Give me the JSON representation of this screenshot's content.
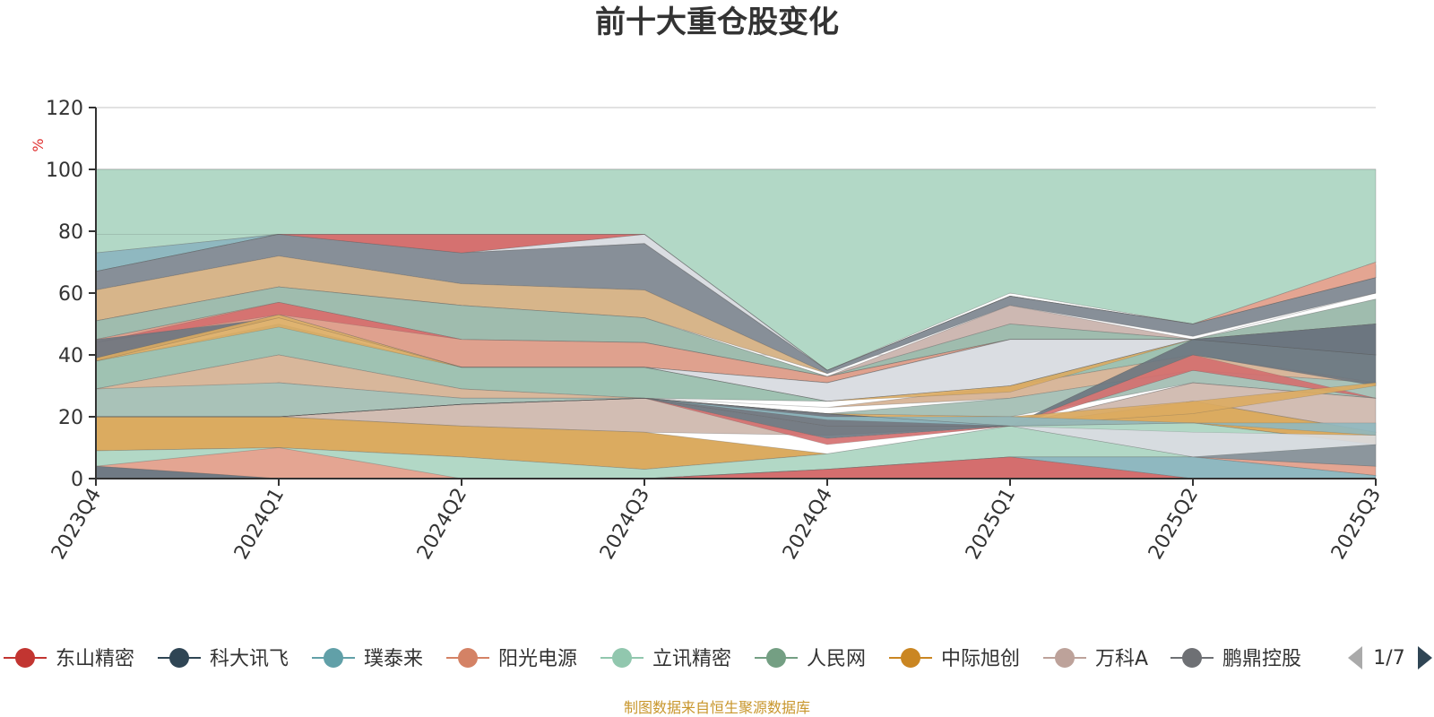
{
  "chart_data": {
    "type": "area",
    "title": "前十大重仓股变化",
    "ylabel": "%",
    "ylim": [
      0,
      120
    ],
    "yticks": [
      "0",
      "20",
      "40",
      "60",
      "80",
      "100",
      "120"
    ],
    "categories": [
      "2023Q4",
      "2024Q1",
      "2024Q2",
      "2024Q3",
      "2024Q4",
      "2025Q1",
      "2025Q2",
      "2025Q3"
    ],
    "bands": [
      {
        "name": "cash-others",
        "color": "#b2d8c6",
        "lower": [
          73,
          79,
          79,
          79,
          35,
          60,
          50,
          70
        ],
        "upper": [
          100,
          100,
          100,
          100,
          100,
          100,
          100,
          100
        ]
      },
      {
        "name": "band-a",
        "color": "#8fb8c0",
        "lower": [
          67,
          79,
          73,
          79,
          35,
          59,
          50,
          65
        ],
        "upper": [
          73,
          79,
          79,
          79,
          35,
          59,
          50,
          69
        ]
      },
      {
        "name": "band-b",
        "color": "#dc8a84",
        "lower": [
          67,
          79,
          73,
          79,
          35,
          59,
          50,
          65
        ],
        "upper": [
          67,
          79,
          79,
          79,
          35,
          59,
          50,
          65
        ]
      },
      {
        "name": "band-c",
        "color": "#dadde2",
        "lower": [
          67,
          79,
          73,
          76,
          35,
          59,
          50,
          65
        ],
        "upper": [
          67,
          79,
          73,
          79,
          35,
          59,
          50,
          65
        ]
      },
      {
        "name": "band-d",
        "color": "#e4a592",
        "lower": [
          65,
          79,
          73,
          76,
          35,
          59,
          50,
          65
        ],
        "upper": [
          65,
          79,
          73,
          76,
          35,
          59,
          50,
          70
        ]
      },
      {
        "name": "band-e",
        "color": "#878f98",
        "lower": [
          61,
          72,
          63,
          61,
          34,
          56,
          46,
          60
        ],
        "upper": [
          67,
          79,
          73,
          76,
          35,
          59,
          50,
          65
        ]
      },
      {
        "name": "band-f",
        "color": "#d7b58a",
        "lower": [
          51,
          62,
          56,
          52,
          34,
          50,
          45,
          60
        ],
        "upper": [
          61,
          72,
          63,
          61,
          34,
          50,
          45,
          60
        ]
      },
      {
        "name": "band-g",
        "color": "#cdb8b2",
        "lower": [
          45,
          62,
          56,
          52,
          33,
          50,
          45,
          58
        ],
        "upper": [
          51,
          62,
          56,
          52,
          33,
          56,
          45,
          58
        ]
      },
      {
        "name": "band-h",
        "color": "#9fbcae",
        "lower": [
          45,
          57,
          45,
          44,
          33,
          45,
          45,
          50
        ],
        "upper": [
          51,
          62,
          56,
          52,
          33,
          50,
          45,
          58
        ]
      },
      {
        "name": "band-i",
        "color": "#dfa18e",
        "lower": [
          39,
          53,
          36,
          36,
          31,
          45,
          45,
          50
        ],
        "upper": [
          45,
          57,
          45,
          44,
          33,
          45,
          45,
          50
        ]
      },
      {
        "name": "band-j",
        "color": "#d7c6bf",
        "lower": [
          38,
          52,
          36,
          36,
          31,
          36,
          45,
          40
        ],
        "upper": [
          39,
          53,
          36,
          36,
          31,
          45,
          45,
          50
        ]
      },
      {
        "name": "band-k",
        "color": "#dadde2",
        "lower": [
          38,
          52,
          36,
          36,
          25,
          30,
          45,
          40
        ],
        "upper": [
          38,
          52,
          36,
          36,
          31,
          45,
          45,
          40
        ]
      },
      {
        "name": "band-l",
        "color": "#9fc2b2",
        "lower": [
          29,
          40,
          29,
          26,
          25,
          30,
          40,
          31
        ],
        "upper": [
          38,
          50,
          36,
          36,
          25,
          30,
          45,
          40
        ]
      },
      {
        "name": "band-m",
        "color": "#d8b79b",
        "lower": [
          20,
          31,
          26,
          26,
          23,
          26,
          35,
          31
        ],
        "upper": [
          29,
          40,
          29,
          26,
          23,
          30,
          40,
          31
        ]
      },
      {
        "name": "band-n",
        "color": "#a9c2b8",
        "lower": [
          20,
          20,
          24,
          26,
          21,
          20,
          31,
          26
        ],
        "upper": [
          29,
          31,
          26,
          26,
          21,
          26,
          35,
          31
        ]
      },
      {
        "name": "band-o",
        "color": "#d2bdb3",
        "lower": [
          20,
          20,
          17,
          15,
          14,
          17,
          25,
          15
        ],
        "upper": [
          20,
          20,
          24,
          26,
          21,
          17,
          31,
          26
        ]
      },
      {
        "name": "band-p",
        "color": "#dbab60",
        "lower": [
          9,
          10,
          7,
          3,
          8,
          17,
          18,
          11
        ],
        "upper": [
          20,
          20,
          17,
          15,
          8,
          17,
          25,
          15
        ]
      },
      {
        "name": "band-q",
        "color": "#b2d8c6",
        "lower": [
          4,
          0,
          0,
          0,
          3,
          7,
          7,
          4
        ],
        "upper": [
          9,
          10,
          7,
          3,
          8,
          17,
          18,
          11
        ]
      },
      {
        "name": "band-r",
        "color": "#e4a592",
        "lower": [
          4,
          0,
          0,
          0,
          3,
          7,
          7,
          1
        ],
        "upper": [
          4,
          10,
          0,
          0,
          3,
          7,
          7,
          4
        ]
      },
      {
        "name": "band-s",
        "color": "#8fb8c0",
        "lower": [
          0,
          0,
          0,
          0,
          3,
          7,
          0,
          0
        ],
        "upper": [
          0,
          0,
          0,
          0,
          3,
          7,
          7,
          1
        ]
      },
      {
        "name": "band-t",
        "color": "#d46e6e",
        "lower": [
          0,
          0,
          0,
          0,
          0,
          0,
          0,
          0
        ],
        "upper": [
          0,
          0,
          0,
          0,
          3,
          7,
          0,
          0
        ]
      },
      {
        "name": "band-u",
        "color": "#707a84",
        "lower": [
          0,
          0,
          0,
          0,
          0,
          0,
          0,
          0
        ],
        "upper": [
          4,
          0,
          0,
          0,
          0,
          0,
          0,
          0
        ]
      }
    ],
    "overlays": [
      {
        "name": "overlay-red-upper",
        "color": "#d46e6e",
        "lower": [
          79,
          79,
          73,
          79,
          35,
          59,
          50,
          65
        ],
        "upper": [
          79,
          79,
          79,
          79,
          35,
          59,
          50,
          65
        ]
      },
      {
        "name": "overlay-red-mid",
        "color": "#d46e6e",
        "lower": [
          44,
          53,
          45,
          44,
          33,
          45,
          45,
          50
        ],
        "upper": [
          44,
          57,
          45,
          44,
          33,
          45,
          45,
          50
        ]
      },
      {
        "name": "overlay-dark-mid",
        "color": "#6b7680",
        "lower": [
          38,
          52,
          36,
          36,
          31,
          45,
          45,
          40
        ],
        "upper": [
          45,
          52,
          36,
          36,
          31,
          45,
          45,
          50
        ]
      },
      {
        "name": "overlay-gold-mid",
        "color": "#dbab60",
        "lower": [
          38,
          49,
          36,
          36,
          25,
          28,
          45,
          40
        ],
        "upper": [
          39,
          53,
          36,
          36,
          25,
          30,
          45,
          40
        ]
      },
      {
        "name": "overlay-dark-low",
        "color": "#6b7680",
        "lower": [
          20,
          20,
          24,
          26,
          13,
          17,
          31,
          26
        ],
        "upper": [
          20,
          20,
          24,
          26,
          17,
          17,
          31,
          26
        ]
      },
      {
        "name": "overlay-dark-q4",
        "color": "#6b7680",
        "lower": [
          20,
          20,
          24,
          26,
          17,
          17,
          35,
          26
        ],
        "upper": [
          20,
          20,
          24,
          26,
          21,
          17,
          35,
          26
        ]
      },
      {
        "name": "overlay-red-q4",
        "color": "#d46e6e",
        "lower": [
          20,
          20,
          24,
          26,
          11,
          17,
          35,
          26
        ],
        "upper": [
          20,
          20,
          24,
          26,
          13,
          17,
          40,
          26
        ]
      },
      {
        "name": "overlay-dark-2025q2",
        "color": "#6b7680",
        "lower": [
          20,
          20,
          24,
          26,
          21,
          17,
          40,
          30
        ],
        "upper": [
          20,
          20,
          24,
          26,
          21,
          17,
          45,
          40
        ]
      },
      {
        "name": "overlay-dark-2025q3",
        "color": "#6b7680",
        "lower": [
          20,
          20,
          24,
          26,
          21,
          17,
          45,
          40
        ],
        "upper": [
          20,
          20,
          24,
          26,
          21,
          17,
          45,
          50
        ]
      },
      {
        "name": "overlay-gold-2025q2",
        "color": "#dbab60",
        "lower": [
          20,
          20,
          24,
          26,
          21,
          17,
          21,
          30
        ],
        "upper": [
          20,
          20,
          24,
          26,
          21,
          20,
          25,
          31
        ]
      },
      {
        "name": "overlay-teal-2025q1",
        "color": "#8fb8c0",
        "lower": [
          20,
          20,
          24,
          26,
          19,
          17,
          18,
          14
        ],
        "upper": [
          20,
          20,
          24,
          26,
          20,
          20,
          18,
          18
        ]
      },
      {
        "name": "overlay-white-low",
        "color": "#dadde2",
        "lower": [
          20,
          20,
          24,
          26,
          21,
          17,
          7,
          11
        ],
        "upper": [
          20,
          20,
          24,
          26,
          21,
          17,
          15,
          14
        ]
      },
      {
        "name": "overlay-gray-low",
        "color": "#878f98",
        "lower": [
          20,
          20,
          24,
          26,
          21,
          17,
          7,
          4
        ],
        "upper": [
          20,
          20,
          24,
          26,
          21,
          17,
          7,
          11
        ]
      },
      {
        "name": "overlay-dark-2023",
        "color": "#707a84",
        "lower": [
          38,
          52,
          36,
          36,
          25,
          30,
          45,
          40
        ],
        "upper": [
          38,
          52,
          36,
          36,
          25,
          30,
          45,
          40
        ]
      }
    ],
    "legend": [
      {
        "label": "东山精密",
        "color": "#c23531"
      },
      {
        "label": "科大讯飞",
        "color": "#2f4554"
      },
      {
        "label": "璞泰来",
        "color": "#61a0a8"
      },
      {
        "label": "阳光电源",
        "color": "#d48265"
      },
      {
        "label": "立讯精密",
        "color": "#91c7ae"
      },
      {
        "label": "人民网",
        "color": "#749f83"
      },
      {
        "label": "中际旭创",
        "color": "#ca8622"
      },
      {
        "label": "万科A",
        "color": "#bda29a"
      },
      {
        "label": "鹏鼎控股",
        "color": "#6e7074"
      }
    ],
    "legend_page": "1/7",
    "source": "制图数据来自恒生聚源数据库"
  }
}
